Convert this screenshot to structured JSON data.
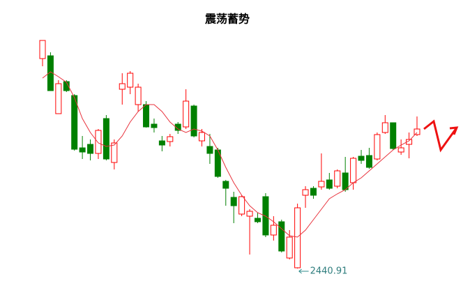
{
  "chart_data": {
    "type": "candlestick",
    "title": "震荡蓄势",
    "open": [
      3344,
      3356,
      3107,
      3245,
      3185,
      2960,
      2975,
      2936,
      3086,
      2897,
      3212,
      3221,
      3146,
      3146,
      3062,
      2990,
      2987,
      3062,
      3050,
      3140,
      2990,
      2966,
      2951,
      2816,
      2747,
      2675,
      2666,
      2657,
      2750,
      2585,
      2642,
      2486,
      2444,
      2756,
      2786,
      2792,
      2822,
      2795,
      2852,
      2810,
      2924,
      2927,
      2912,
      3026,
      3068,
      2942,
      2975,
      3017
    ],
    "high": [
      3422,
      3371,
      3251,
      3251,
      3191,
      3011,
      2996,
      3041,
      3101,
      2996,
      3281,
      3290,
      3236,
      3161,
      3086,
      3011,
      3020,
      3071,
      3212,
      3146,
      3041,
      3020,
      2960,
      2822,
      2771,
      2756,
      2696,
      2681,
      2765,
      2666,
      2651,
      2606,
      2720,
      2795,
      2795,
      2936,
      2852,
      2867,
      2921,
      2921,
      2951,
      2960,
      3026,
      3101,
      3068,
      2996,
      3026,
      3095
    ],
    "low": [
      3311,
      3206,
      3107,
      3200,
      2948,
      2912,
      2906,
      2912,
      2906,
      2867,
      3146,
      3191,
      3116,
      3047,
      3026,
      2945,
      2966,
      3020,
      3041,
      3005,
      2966,
      2891,
      2831,
      2711,
      2636,
      2666,
      2501,
      2636,
      2576,
      2561,
      2510,
      2480,
      2440.91,
      2702,
      2741,
      2780,
      2780,
      2786,
      2771,
      2780,
      2891,
      2870,
      2906,
      3020,
      2951,
      2930,
      2915,
      3011
    ],
    "close": [
      3422,
      3206,
      3236,
      3206,
      2954,
      2942,
      2936,
      3035,
      2912,
      2981,
      3236,
      3281,
      3221,
      3050,
      3047,
      2972,
      3008,
      3035,
      3161,
      3011,
      3026,
      2936,
      2837,
      2786,
      2711,
      2750,
      2687,
      2642,
      2585,
      2627,
      2516,
      2576,
      2702,
      2780,
      2756,
      2816,
      2786,
      2861,
      2780,
      2915,
      2906,
      2876,
      3017,
      3068,
      2957,
      2960,
      2996,
      3041
    ],
    "up_color": "#ff0000",
    "down_color": "#008000",
    "ma": {
      "color": "#e8323c",
      "values": [
        3260,
        3287,
        3266,
        3242,
        3176,
        3086,
        3026,
        2981,
        2966,
        2972,
        3011,
        3071,
        3116,
        3146,
        3146,
        3116,
        3071,
        3041,
        3026,
        3041,
        3032,
        3011,
        2951,
        2876,
        2810,
        2756,
        2711,
        2681,
        2666,
        2642,
        2612,
        2582,
        2576,
        2606,
        2651,
        2696,
        2741,
        2762,
        2780,
        2810,
        2831,
        2861,
        2891,
        2921,
        2951,
        2972,
        2990,
        3026
      ]
    },
    "ylim": [
      2420,
      3440
    ]
  }
}
